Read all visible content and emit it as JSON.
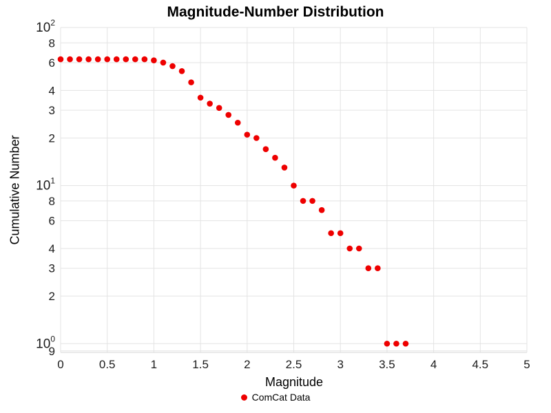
{
  "chart_data": {
    "type": "scatter",
    "title": "Magnitude-Number Distribution",
    "xlabel": "Magnitude",
    "ylabel": "Cumulative Number",
    "grid": true,
    "background": "#ffffff",
    "grid_color": "#e3e3e3",
    "tick_color": "#1a1a1a",
    "legend_position": "bottom-center",
    "legend": [
      {
        "label": "ComCat Data",
        "color": "#ee0000"
      }
    ],
    "x_axis": {
      "scale": "linear",
      "range": [
        0,
        5
      ],
      "ticks": [
        {
          "v": 0,
          "label": "0"
        },
        {
          "v": 0.5,
          "label": "0.5"
        },
        {
          "v": 1,
          "label": "1"
        },
        {
          "v": 1.5,
          "label": "1.5"
        },
        {
          "v": 2,
          "label": "2"
        },
        {
          "v": 2.5,
          "label": "2.5"
        },
        {
          "v": 3,
          "label": "3"
        },
        {
          "v": 3.5,
          "label": "3.5"
        },
        {
          "v": 4,
          "label": "4"
        },
        {
          "v": 4.5,
          "label": "4.5"
        },
        {
          "v": 5,
          "label": "5"
        }
      ]
    },
    "y_axis": {
      "scale": "log",
      "range": [
        0.88,
        100
      ],
      "ticks": [
        {
          "v": 100,
          "label": "10",
          "exp": "2"
        },
        {
          "v": 80,
          "label": "8"
        },
        {
          "v": 60,
          "label": "6"
        },
        {
          "v": 40,
          "label": "4"
        },
        {
          "v": 30,
          "label": "3"
        },
        {
          "v": 20,
          "label": "2"
        },
        {
          "v": 10,
          "label": "10",
          "exp": "1"
        },
        {
          "v": 8,
          "label": "8"
        },
        {
          "v": 6,
          "label": "6"
        },
        {
          "v": 4,
          "label": "4"
        },
        {
          "v": 3,
          "label": "3"
        },
        {
          "v": 2,
          "label": "2"
        },
        {
          "v": 1,
          "label": "10",
          "exp": "0"
        },
        {
          "v": 0.9,
          "label": "9"
        }
      ]
    },
    "series": [
      {
        "name": "ComCat Data",
        "color": "#ee0000",
        "marker": "circle",
        "marker_size": 4.3,
        "points": [
          [
            0.0,
            63
          ],
          [
            0.1,
            63
          ],
          [
            0.2,
            63
          ],
          [
            0.3,
            63
          ],
          [
            0.4,
            63
          ],
          [
            0.5,
            63
          ],
          [
            0.6,
            63
          ],
          [
            0.7,
            63
          ],
          [
            0.8,
            63
          ],
          [
            0.9,
            63
          ],
          [
            1.0,
            62
          ],
          [
            1.1,
            60
          ],
          [
            1.2,
            57
          ],
          [
            1.3,
            53
          ],
          [
            1.4,
            45
          ],
          [
            1.5,
            36
          ],
          [
            1.6,
            33
          ],
          [
            1.7,
            31
          ],
          [
            1.8,
            28
          ],
          [
            1.9,
            25
          ],
          [
            2.0,
            21
          ],
          [
            2.1,
            20
          ],
          [
            2.2,
            17
          ],
          [
            2.3,
            15
          ],
          [
            2.4,
            13
          ],
          [
            2.5,
            10
          ],
          [
            2.6,
            8
          ],
          [
            2.7,
            8
          ],
          [
            2.8,
            7
          ],
          [
            2.9,
            5
          ],
          [
            3.0,
            5
          ],
          [
            3.1,
            4
          ],
          [
            3.2,
            4
          ],
          [
            3.3,
            3
          ],
          [
            3.4,
            3
          ],
          [
            3.5,
            1
          ],
          [
            3.6,
            1
          ],
          [
            3.7,
            1
          ]
        ]
      }
    ]
  }
}
